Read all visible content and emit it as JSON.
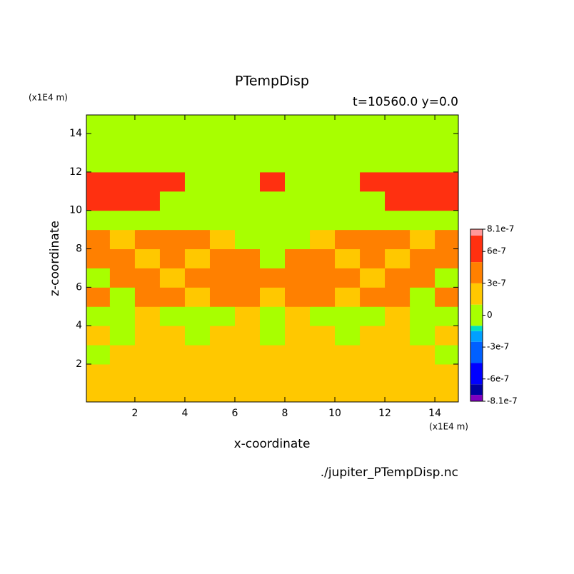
{
  "chart_data": {
    "type": "contour",
    "title": "PTempDisp",
    "subtitle": "t=10560.0 y=0.0",
    "x_label": "x-coordinate",
    "y_label": "z-coordinate",
    "x_units": "(x1E4 m)",
    "y_units": "(x1E4 m)",
    "file": "./jupiter_PTempDisp.nc",
    "xlim": [
      0.06,
      14.94
    ],
    "ylim": [
      0.03,
      14.97
    ],
    "xticks": [
      2,
      4,
      6,
      8,
      10,
      12,
      14
    ],
    "yticks": [
      2,
      4,
      6,
      8,
      10,
      12,
      14
    ],
    "x": [
      0.5,
      1.5,
      2.5,
      3.5,
      4.5,
      5.5,
      6.5,
      7.5,
      8.5,
      9.5,
      10.5,
      11.5,
      12.5,
      13.5,
      14.5
    ],
    "y": [
      0.5,
      1.5,
      2.5,
      3.5,
      4.5,
      5.5,
      6.5,
      7.5,
      8.5,
      9.5,
      10.5,
      11.5,
      12.5,
      13.5,
      14.5
    ],
    "z": [
      [
        2e-07,
        2e-07,
        2e-07,
        2e-07,
        2e-07,
        2e-07,
        2e-07,
        2e-07,
        2e-07,
        2e-07,
        2e-07,
        2e-07,
        2e-07,
        2e-07,
        2e-07
      ],
      [
        2e-07,
        2e-07,
        2e-07,
        2e-07,
        2e-07,
        2e-07,
        2e-07,
        2e-07,
        2e-07,
        2e-07,
        2e-07,
        2e-07,
        2e-07,
        2e-07,
        2e-07
      ],
      [
        5e-08,
        2e-07,
        2e-07,
        2e-07,
        2e-07,
        2e-07,
        2e-07,
        2e-07,
        2e-07,
        2e-07,
        2e-07,
        2e-07,
        2e-07,
        2e-07,
        5e-08
      ],
      [
        2e-07,
        5e-08,
        2e-07,
        2e-07,
        5e-08,
        2e-07,
        2e-07,
        5e-08,
        2e-07,
        2e-07,
        5e-08,
        2e-07,
        2e-07,
        5e-08,
        2e-07
      ],
      [
        5e-08,
        5e-08,
        2e-07,
        5e-08,
        5e-08,
        5e-08,
        2e-07,
        5e-08,
        2e-07,
        5e-08,
        5e-08,
        5e-08,
        2e-07,
        5e-08,
        5e-08
      ],
      [
        4e-07,
        5e-08,
        4e-07,
        4e-07,
        2e-07,
        4e-07,
        4e-07,
        2e-07,
        4e-07,
        4e-07,
        2e-07,
        4e-07,
        4e-07,
        5e-08,
        4e-07
      ],
      [
        5e-08,
        4e-07,
        4e-07,
        2e-07,
        4e-07,
        4e-07,
        4e-07,
        4e-07,
        4e-07,
        4e-07,
        4e-07,
        2e-07,
        4e-07,
        4e-07,
        5e-08
      ],
      [
        4e-07,
        4e-07,
        2e-07,
        4e-07,
        2e-07,
        4e-07,
        4e-07,
        5e-08,
        4e-07,
        4e-07,
        2e-07,
        4e-07,
        2e-07,
        4e-07,
        4e-07
      ],
      [
        4e-07,
        2e-07,
        4e-07,
        4e-07,
        4e-07,
        2e-07,
        5e-08,
        5e-08,
        5e-08,
        2e-07,
        4e-07,
        4e-07,
        4e-07,
        2e-07,
        4e-07
      ],
      [
        5e-08,
        5e-08,
        5e-08,
        5e-08,
        5e-08,
        5e-08,
        5e-08,
        5e-08,
        5e-08,
        5e-08,
        5e-08,
        5e-08,
        5e-08,
        5e-08,
        5e-08
      ],
      [
        6.5e-07,
        6.5e-07,
        6.5e-07,
        5e-08,
        5e-08,
        5e-08,
        5e-08,
        5e-08,
        5e-08,
        5e-08,
        5e-08,
        5e-08,
        6.5e-07,
        6.5e-07,
        6.5e-07
      ],
      [
        6.5e-07,
        6.5e-07,
        6.5e-07,
        6.5e-07,
        5e-08,
        5e-08,
        5e-08,
        6.5e-07,
        5e-08,
        5e-08,
        5e-08,
        6.5e-07,
        6.5e-07,
        6.5e-07,
        6.5e-07
      ],
      [
        5e-08,
        5e-08,
        5e-08,
        5e-08,
        5e-08,
        5e-08,
        5e-08,
        5e-08,
        5e-08,
        5e-08,
        5e-08,
        5e-08,
        5e-08,
        5e-08,
        5e-08
      ],
      [
        5e-08,
        5e-08,
        5e-08,
        5e-08,
        5e-08,
        5e-08,
        5e-08,
        5e-08,
        5e-08,
        5e-08,
        5e-08,
        5e-08,
        5e-08,
        5e-08,
        5e-08
      ],
      [
        5e-08,
        5e-08,
        5e-08,
        5e-08,
        5e-08,
        5e-08,
        5e-08,
        5e-08,
        5e-08,
        5e-08,
        5e-08,
        5e-08,
        5e-08,
        5e-08,
        5e-08
      ]
    ],
    "levels": [
      -8.1e-07,
      -7.5e-07,
      -6.5e-07,
      -4.5e-07,
      -2.5e-07,
      -1.5e-07,
      -1e-07,
      1e-07,
      3e-07,
      5e-07,
      7.5e-07,
      8.1e-07
    ],
    "colors": [
      "#8000c0",
      "#0000a0",
      "#0000ff",
      "#0060ff",
      "#00a0ff",
      "#00e0c0",
      "#a8ff00",
      "#ffc800",
      "#ff8000",
      "#ff3010",
      "#ff9999"
    ],
    "cticks": [
      8.1e-07,
      6e-07,
      3e-07,
      0,
      -3e-07,
      -6e-07,
      -8.1e-07
    ]
  }
}
